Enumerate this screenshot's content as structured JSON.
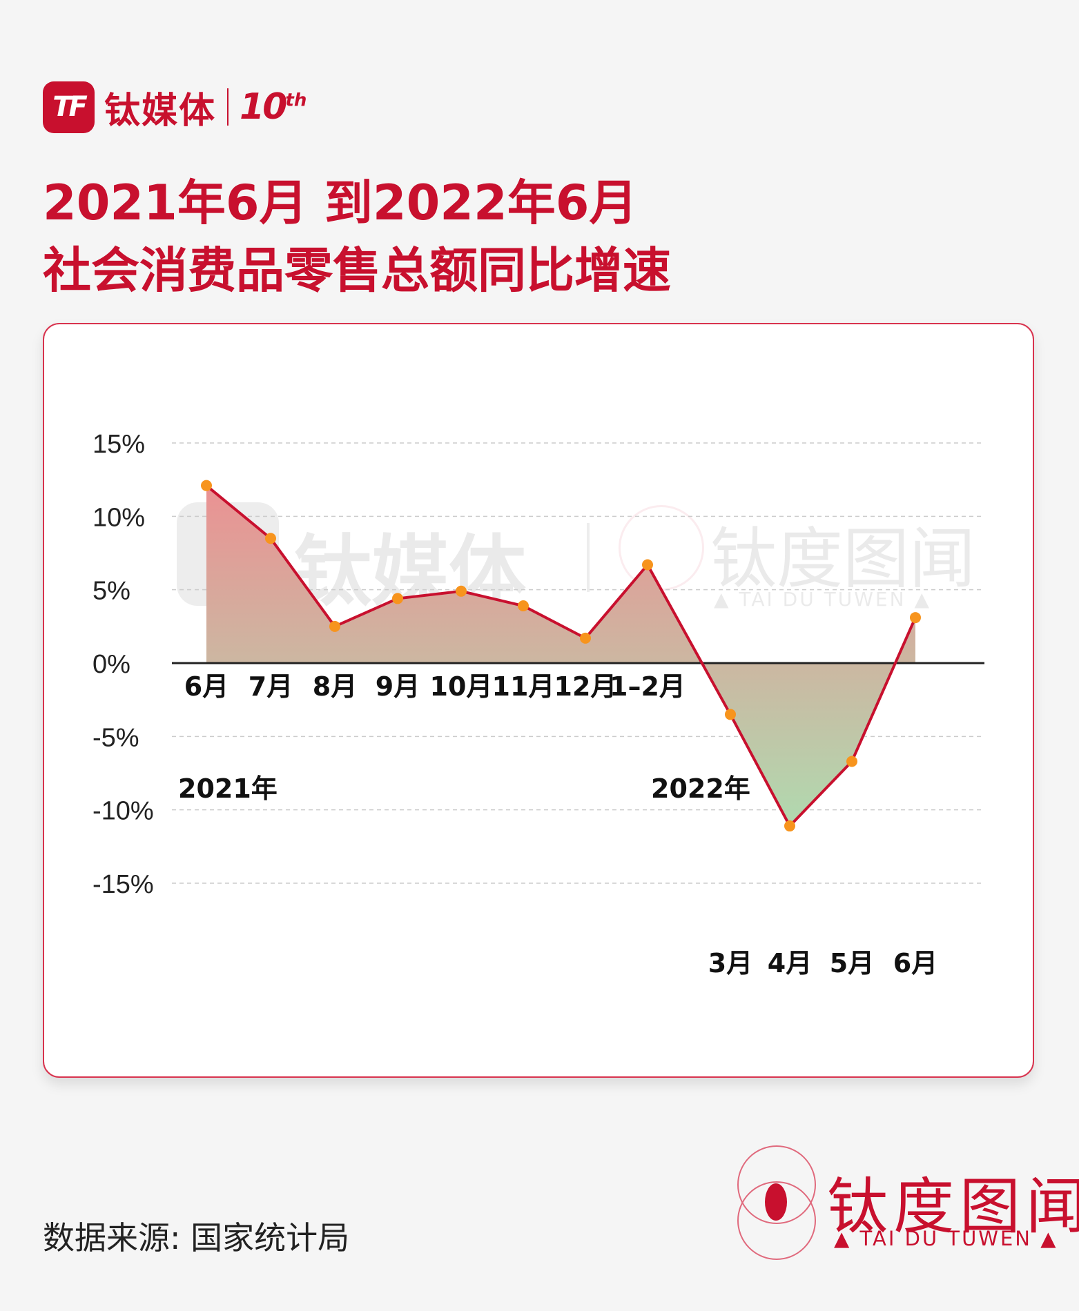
{
  "brand": {
    "mark": "TF",
    "name": "钛媒体",
    "anniversary": "10",
    "anniversary_sup": "th"
  },
  "title": {
    "line1": "2021年6月 到2022年6月",
    "line2": "社会消费品零售总额同比增速"
  },
  "watermark": {
    "name": "钛媒体",
    "brand2": "钛度图闻",
    "brand2_sub": "▲ TAI DU TUWEN ▲"
  },
  "source": "数据来源: 国家统计局",
  "logo": {
    "name": "钛度图闻",
    "sub": "▲ TAI DU TUWEN ▲"
  },
  "colors": {
    "brand_red": "#c8102e",
    "line": "#c8102e",
    "marker": "#f7941d",
    "area_positive": "#f2888f",
    "area_negative": "#a6e6b4",
    "grid": "#cccccc",
    "axis": "#222222"
  },
  "chart_data": {
    "type": "area",
    "categories": [
      "6月",
      "7月",
      "8月",
      "9月",
      "10月",
      "11月",
      "12月",
      "1–2月",
      "3月",
      "4月",
      "5月",
      "6月"
    ],
    "values": [
      12.1,
      8.5,
      2.5,
      4.4,
      4.9,
      3.9,
      1.7,
      6.7,
      -3.5,
      -11.1,
      -6.7,
      3.1
    ],
    "year_labels": [
      "2021年",
      "2022年"
    ],
    "y_ticks": [
      "15%",
      "10%",
      "5%",
      "0%",
      "-5%",
      "-10%",
      "-15%"
    ],
    "ylim": [
      -15,
      15
    ],
    "grid": true
  }
}
